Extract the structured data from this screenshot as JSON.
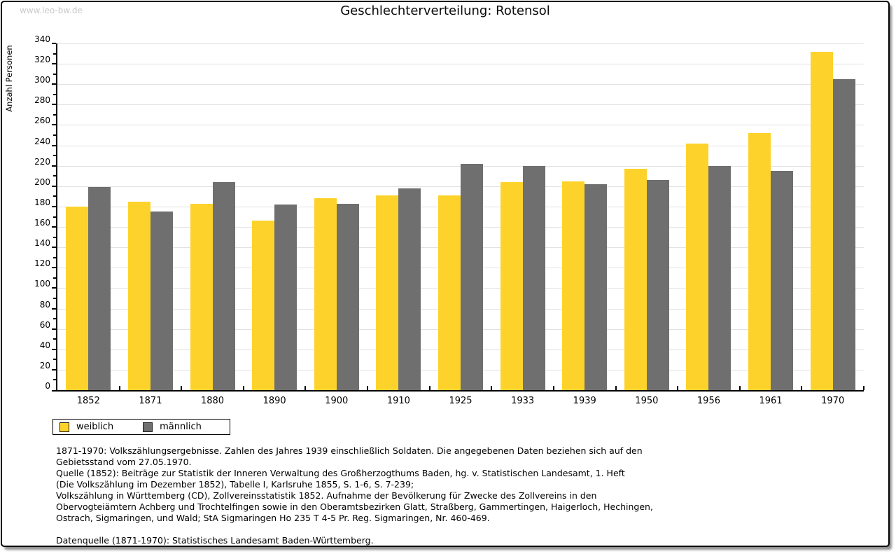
{
  "page": {
    "watermark": "www.leo-bw.de"
  },
  "chart_data": {
    "type": "bar",
    "title": "Geschlechterverteilung: Rotensol",
    "xlabel": "",
    "ylabel": "Anzahl Personen",
    "categories": [
      "1852",
      "1871",
      "1880",
      "1890",
      "1900",
      "1910",
      "1925",
      "1933",
      "1939",
      "1950",
      "1956",
      "1961",
      "1970"
    ],
    "series": [
      {
        "name": "weiblich",
        "color": "#fdd32b",
        "values": [
          180,
          185,
          183,
          166,
          188,
          191,
          191,
          204,
          205,
          217,
          242,
          252,
          332
        ]
      },
      {
        "name": "männlich",
        "color": "#6f6f6f",
        "values": [
          199,
          175,
          204,
          182,
          183,
          198,
          222,
          220,
          202,
          206,
          220,
          215,
          305
        ]
      }
    ],
    "ylim": [
      0,
      340
    ],
    "ytick_step": 20,
    "ytick_minor_step": 10,
    "grid": true,
    "gridline_color": "#e2e2e2",
    "legend_position": "bottom-left"
  },
  "footer": {
    "lines": [
      "1871-1970: Volkszählungsergebnisse. Zahlen des Jahres 1939 einschließlich Soldaten. Die angegebenen Daten beziehen sich auf den",
      "Gebietsstand vom 27.05.1970.",
      "Quelle (1852): Beiträge zur Statistik der Inneren Verwaltung des Großherzogthums Baden, hg. v. Statistischen Landesamt, 1. Heft",
      "(Die Volkszählung im Dezember 1852), Tabelle I, Karlsruhe 1855, S. 1-6, S. 7-239;",
      "Volkszählung in Württemberg (CD), Zollvereinsstatistik 1852. Aufnahme der Bevölkerung für Zwecke des Zollvereins in den",
      "Obervogteiämtern Achberg und Trochtelfingen sowie in den Oberamtsbezirken Glatt, Straßberg, Gammertingen, Haigerloch, Hechingen,",
      "Ostrach, Sigmaringen, und Wald; StA Sigmaringen Ho 235 T 4-5 Pr. Reg. Sigmaringen, Nr. 460-469.",
      "",
      "Datenquelle (1871-1970): Statistisches Landesamt Baden-Württemberg."
    ]
  }
}
